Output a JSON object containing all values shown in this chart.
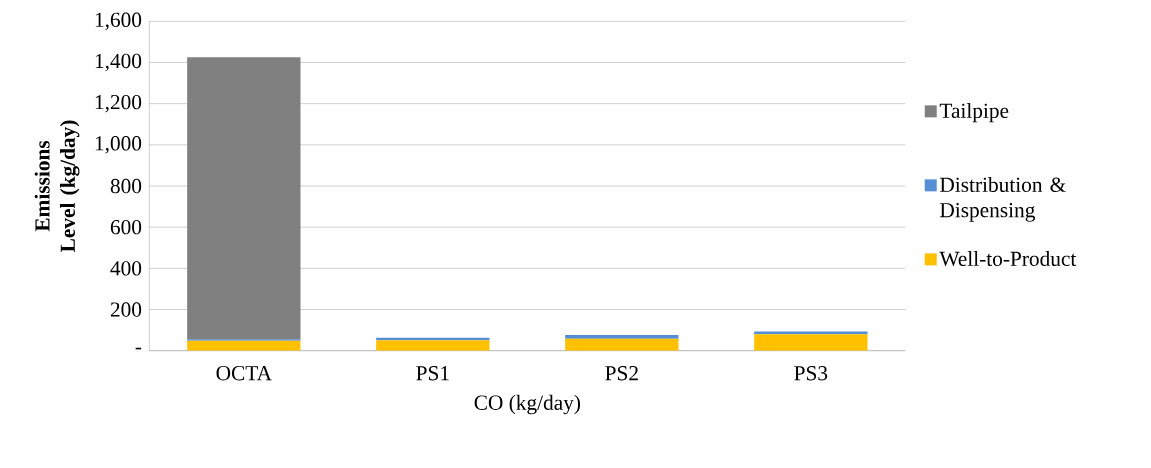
{
  "chart_data": {
    "type": "bar",
    "stacked": true,
    "xlabel": "CO (kg/day)",
    "ylabel": "Emissions Level (kg/day)",
    "categories": [
      "OCTA",
      "PS1",
      "PS2",
      "PS3"
    ],
    "series": [
      {
        "name": "Well-to-Product",
        "color": "#ffc000",
        "values": [
          48,
          50,
          58,
          80
        ]
      },
      {
        "name": "Distribution & Dispensing",
        "color": "#558ed5",
        "values": [
          8,
          13,
          18,
          13
        ]
      },
      {
        "name": "Tailpipe",
        "color": "#808080",
        "values": [
          1370,
          0,
          0,
          0
        ]
      }
    ],
    "ylim": [
      0,
      1600
    ],
    "yticks": [
      {
        "value": 0,
        "label": "-"
      },
      200,
      400,
      600,
      800,
      {
        "value": 1000,
        "label": "1,000"
      },
      {
        "value": 1200,
        "label": "1,200"
      },
      {
        "value": 1400,
        "label": "1,400"
      },
      {
        "value": 1600,
        "label": "1,600"
      }
    ],
    "grid": "y",
    "legend": "right"
  }
}
